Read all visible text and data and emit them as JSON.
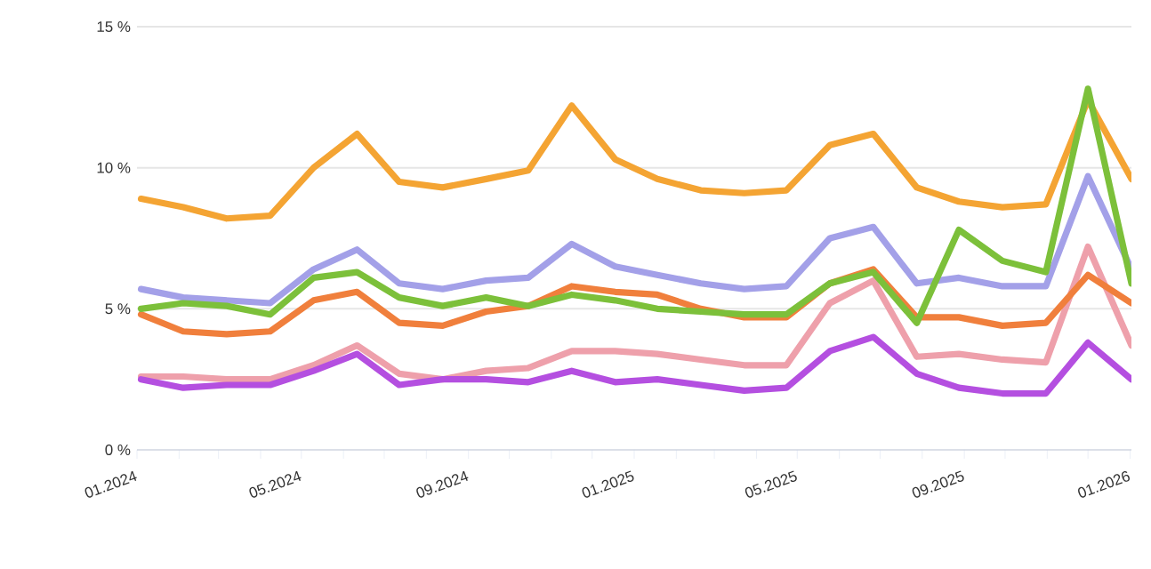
{
  "chart_data": {
    "type": "line",
    "x": [
      "2024-01-04",
      "2024-02-04",
      "2024-03-07",
      "2024-04-08",
      "2024-05-10",
      "2024-06-11",
      "2024-07-12",
      "2024-08-13",
      "2024-09-14",
      "2024-10-15",
      "2024-11-16",
      "2024-12-18",
      "2025-01-18",
      "2025-02-19",
      "2025-03-23",
      "2025-04-23",
      "2025-05-25",
      "2025-06-26",
      "2025-07-28",
      "2025-08-28",
      "2025-09-29",
      "2025-10-31",
      "2025-12-01",
      "2026-01-02"
    ],
    "series": [
      {
        "color": "#a3a0e8",
        "values": [
          5.7,
          5.4,
          5.3,
          5.2,
          6.4,
          7.1,
          5.9,
          5.7,
          6.0,
          6.1,
          7.3,
          6.5,
          6.2,
          5.9,
          5.7,
          5.8,
          7.5,
          7.9,
          5.9,
          6.1,
          5.8,
          5.8,
          9.7,
          6.4
        ]
      },
      {
        "color": "#f4a433",
        "values": [
          8.9,
          8.6,
          8.2,
          8.3,
          10.0,
          11.2,
          9.5,
          9.3,
          9.6,
          9.9,
          12.2,
          10.3,
          9.6,
          9.2,
          9.1,
          9.2,
          10.8,
          11.2,
          9.3,
          8.8,
          8.6,
          8.7,
          12.4,
          9.6
        ]
      },
      {
        "color": "#eea0ab",
        "values": [
          2.6,
          2.6,
          2.5,
          2.5,
          3.0,
          3.7,
          2.7,
          2.5,
          2.8,
          2.9,
          3.5,
          3.5,
          3.4,
          3.2,
          3.0,
          3.0,
          5.2,
          6.0,
          3.3,
          3.4,
          3.2,
          3.1,
          7.2,
          3.7
        ]
      },
      {
        "color": "#f07f3c",
        "values": [
          4.8,
          4.2,
          4.1,
          4.2,
          5.3,
          5.6,
          4.5,
          4.4,
          4.9,
          5.1,
          5.8,
          5.6,
          5.5,
          5.0,
          4.7,
          4.7,
          5.9,
          6.4,
          4.7,
          4.7,
          4.4,
          4.5,
          6.2,
          5.2
        ]
      },
      {
        "color": "#7cc03a",
        "values": [
          5.0,
          5.2,
          5.1,
          4.8,
          6.1,
          6.3,
          5.4,
          5.1,
          5.4,
          5.1,
          5.5,
          5.3,
          5.0,
          4.9,
          4.8,
          4.8,
          5.9,
          6.3,
          4.5,
          7.8,
          6.7,
          6.3,
          12.8,
          5.9
        ]
      },
      {
        "color": "#b44fe0",
        "values": [
          2.5,
          2.2,
          2.3,
          2.3,
          2.8,
          3.4,
          2.3,
          2.5,
          2.5,
          2.4,
          2.8,
          2.4,
          2.5,
          2.3,
          2.1,
          2.2,
          3.5,
          4.0,
          2.7,
          2.2,
          2.0,
          2.0,
          3.8,
          2.5
        ]
      }
    ],
    "xlim": [
      "2024-01-01",
      "2026-01-02"
    ],
    "xticks": [
      {
        "value": "2024-01",
        "label": "01.2024"
      },
      {
        "value": "2024-02",
        "label": null
      },
      {
        "value": "2024-03",
        "label": null
      },
      {
        "value": "2024-04",
        "label": null
      },
      {
        "value": "2024-05",
        "label": "05.2024"
      },
      {
        "value": "2024-06",
        "label": null
      },
      {
        "value": "2024-07",
        "label": null
      },
      {
        "value": "2024-08",
        "label": null
      },
      {
        "value": "2024-09",
        "label": "09.2024"
      },
      {
        "value": "2024-10",
        "label": null
      },
      {
        "value": "2024-11",
        "label": null
      },
      {
        "value": "2024-12",
        "label": null
      },
      {
        "value": "2025-01",
        "label": "01.2025"
      },
      {
        "value": "2025-02",
        "label": null
      },
      {
        "value": "2025-03",
        "label": null
      },
      {
        "value": "2025-04",
        "label": null
      },
      {
        "value": "2025-05",
        "label": "05.2025"
      },
      {
        "value": "2025-06",
        "label": null
      },
      {
        "value": "2025-07",
        "label": null
      },
      {
        "value": "2025-08",
        "label": null
      },
      {
        "value": "2025-09",
        "label": "09.2025"
      },
      {
        "value": "2025-10",
        "label": null
      },
      {
        "value": "2025-11",
        "label": null
      },
      {
        "value": "2025-12",
        "label": null
      },
      {
        "value": "2026-01",
        "label": "01.2026"
      }
    ],
    "ylim": [
      0,
      15
    ],
    "yticks": [
      {
        "value": 0,
        "label": "0 %"
      },
      {
        "value": 5,
        "label": "5 %"
      },
      {
        "value": 10,
        "label": "10 %"
      },
      {
        "value": 15,
        "label": "15 %"
      }
    ],
    "grid": "y",
    "legend": false,
    "marker": "none",
    "line_style": "solid"
  }
}
